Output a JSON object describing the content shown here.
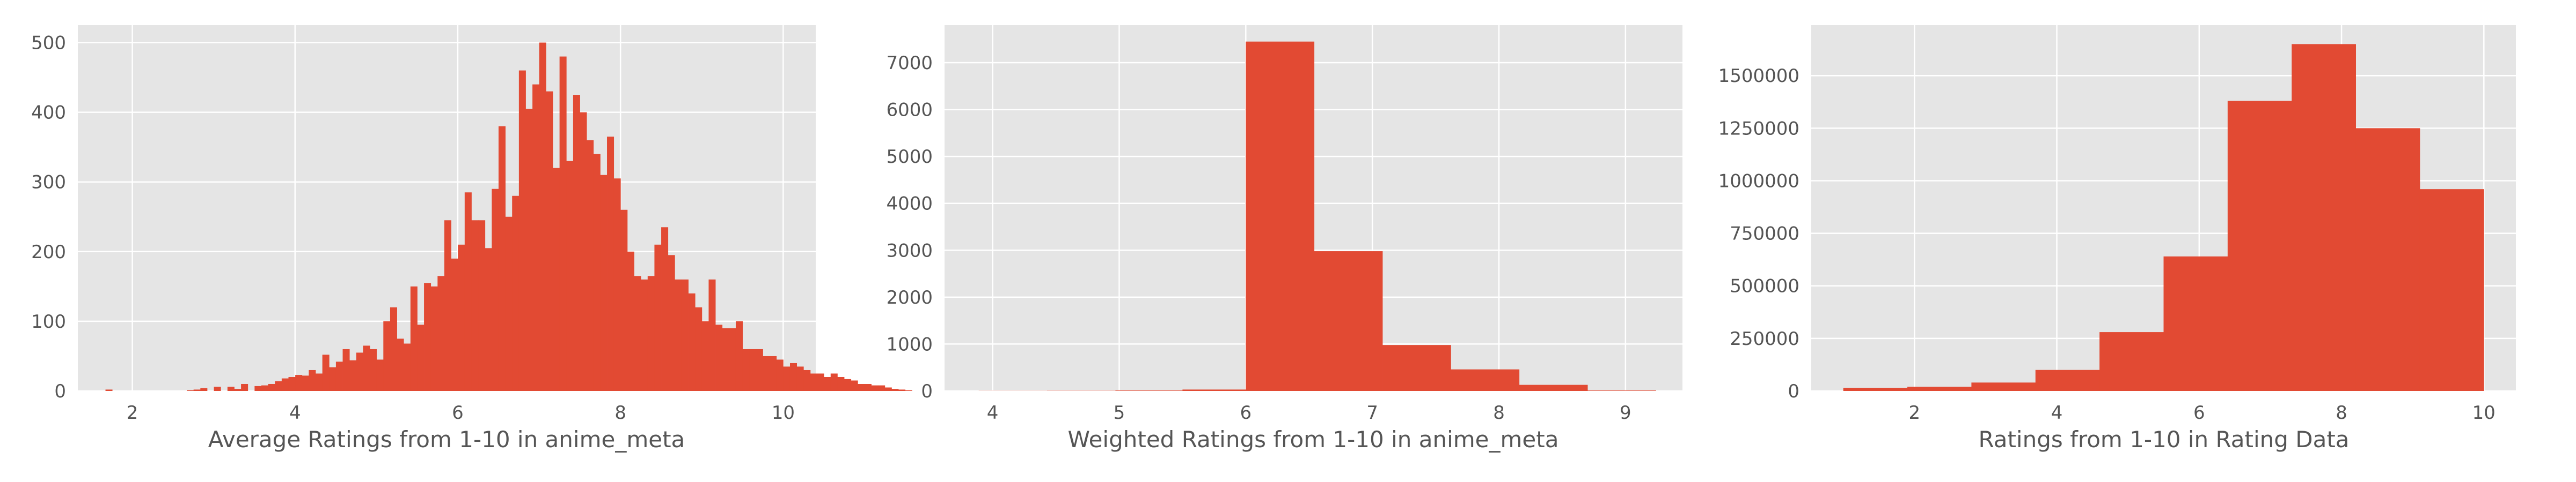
{
  "colors": {
    "panel_bg": "#e5e5e5",
    "grid": "#ffffff",
    "bar": "#e24a33",
    "text": "#555555"
  },
  "chart_data": [
    {
      "type": "bar",
      "histogram": true,
      "xlabel": "Average Ratings from 1-10 in anime_meta",
      "ylabel": "",
      "xlim": [
        1.33,
        10.4
      ],
      "ylim": [
        0,
        525
      ],
      "xticks": [
        2,
        4,
        6,
        8,
        10
      ],
      "yticks": [
        0,
        100,
        200,
        300,
        400,
        500
      ],
      "bin_start": 1.67,
      "bin_width": 0.0833,
      "values": [
        2,
        0,
        0,
        0,
        0,
        0,
        0,
        0,
        0,
        0,
        0,
        0,
        1,
        2,
        4,
        0,
        6,
        0,
        6,
        3,
        10,
        0,
        7,
        8,
        10,
        14,
        18,
        20,
        23,
        22,
        30,
        25,
        52,
        34,
        42,
        60,
        44,
        55,
        65,
        60,
        45,
        100,
        120,
        75,
        68,
        150,
        95,
        155,
        150,
        165,
        245,
        190,
        210,
        285,
        245,
        245,
        205,
        290,
        380,
        250,
        280,
        460,
        405,
        440,
        500,
        430,
        320,
        480,
        330,
        425,
        400,
        360,
        340,
        310,
        365,
        305,
        260,
        200,
        165,
        160,
        165,
        210,
        235,
        195,
        160,
        160,
        140,
        120,
        100,
        160,
        95,
        90,
        90,
        100,
        60,
        60,
        60,
        50,
        50,
        45,
        35,
        40,
        35,
        30,
        25,
        25,
        20,
        25,
        20,
        17,
        15,
        10,
        10,
        8,
        8,
        5,
        3,
        2,
        1,
        0,
        0,
        0,
        0,
        0,
        0,
        0,
        0,
        0
      ]
    },
    {
      "type": "bar",
      "histogram": true,
      "xlabel": "Weighted Ratings from 1-10 in anime_meta",
      "ylabel": "",
      "xlim": [
        3.62,
        9.45
      ],
      "ylim": [
        0,
        7800
      ],
      "xticks": [
        4,
        5,
        6,
        7,
        8,
        9
      ],
      "yticks": [
        0,
        1000,
        2000,
        3000,
        4000,
        5000,
        6000,
        7000
      ],
      "bin_edges": [
        3.89,
        4.43,
        4.97,
        5.5,
        6.0,
        6.54,
        7.08,
        7.62,
        8.16,
        8.7,
        9.24
      ],
      "values": [
        2,
        4,
        10,
        30,
        7450,
        2980,
        980,
        460,
        130,
        10
      ]
    },
    {
      "type": "bar",
      "histogram": true,
      "xlabel": "Ratings from 1-10 in Rating Data",
      "ylabel": "",
      "xlim": [
        0.55,
        10.45
      ],
      "ylim": [
        0,
        1740000
      ],
      "xticks": [
        2,
        4,
        6,
        8,
        10
      ],
      "yticks": [
        0,
        250000,
        500000,
        750000,
        1000000,
        1250000,
        1500000
      ],
      "bin_start": 1.0,
      "bin_width": 0.9,
      "values": [
        15000,
        20000,
        40000,
        100000,
        280000,
        640000,
        1380000,
        1650000,
        1250000,
        960000
      ]
    }
  ]
}
